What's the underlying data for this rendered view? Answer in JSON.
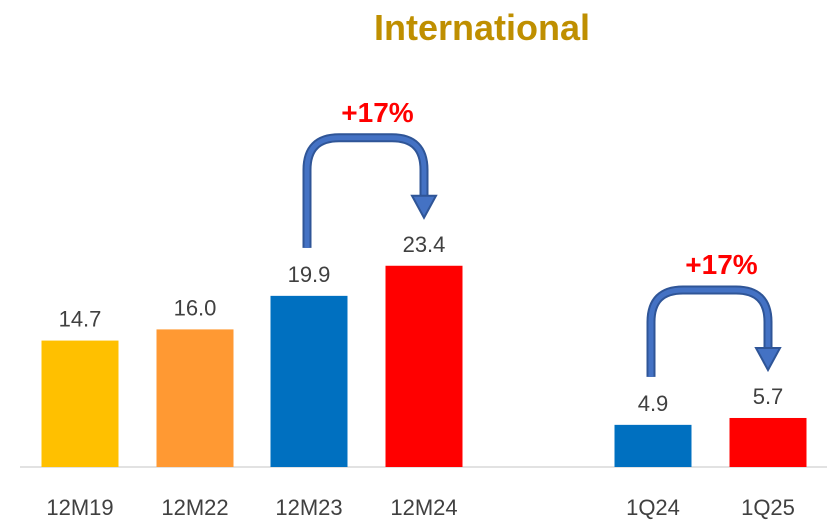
{
  "chart_data": {
    "type": "bar",
    "title": "International",
    "categories": [
      "12M19",
      "12M22",
      "12M23",
      "12M24",
      "1Q24",
      "1Q25"
    ],
    "values": [
      14.7,
      16.0,
      19.9,
      23.4,
      4.9,
      5.7
    ],
    "value_labels": [
      "14.7",
      "16.0",
      "19.9",
      "23.4",
      "4.9",
      "5.7"
    ],
    "bar_colors": [
      "#FFC000",
      "#FF9933",
      "#0070C0",
      "#FF0000",
      "#0070C0",
      "#FF0000"
    ],
    "annotations": [
      {
        "text": "+17%",
        "from": "12M23",
        "to": "12M24",
        "color": "#FF0000"
      },
      {
        "text": "+17%",
        "from": "1Q24",
        "to": "1Q25",
        "color": "#FF0000"
      }
    ],
    "title_color": "#BF8F00",
    "arrow_color": "#2F5597",
    "ylim": [
      0,
      30
    ],
    "grid": false,
    "legend": "none"
  }
}
